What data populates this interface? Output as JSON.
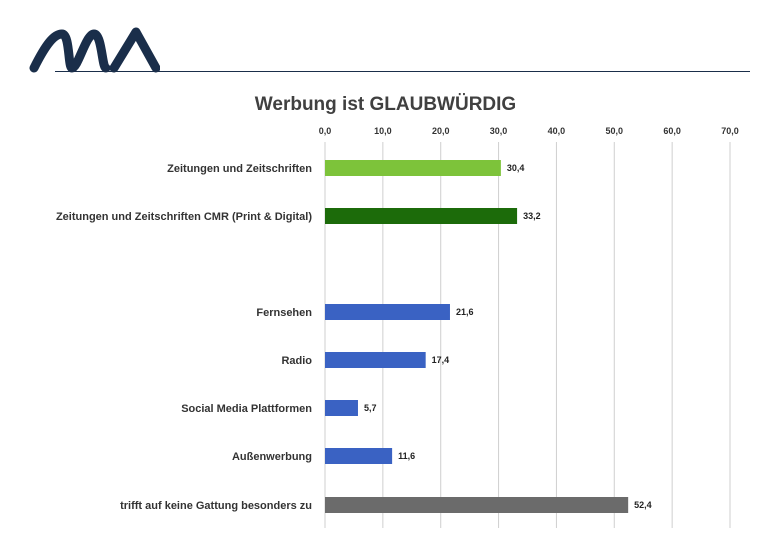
{
  "colors": {
    "logo": "#1a2e4a",
    "rule": "#1a2e4a",
    "gridline": "#cfcfcf",
    "title": "#404040"
  },
  "chart_data": {
    "type": "bar",
    "orientation": "horizontal",
    "title": "Werbung ist GLAUBWÜRDIG",
    "xlim": [
      0,
      70
    ],
    "xticks": [
      "0,0",
      "10,0",
      "20,0",
      "30,0",
      "40,0",
      "50,0",
      "60,0",
      "70,0"
    ],
    "xtick_values": [
      0,
      10,
      20,
      30,
      40,
      50,
      60,
      70
    ],
    "grid": true,
    "tick_position": "top",
    "categories": [
      "Zeitungen und Zeitschriften",
      "Zeitungen und Zeitschriften CMR (Print & Digital)",
      "Fernsehen",
      "Radio",
      "Social Media Plattformen",
      "Außenwerbung",
      "trifft auf keine Gattung besonders zu"
    ],
    "values": [
      30.4,
      33.2,
      21.6,
      17.4,
      5.7,
      11.6,
      52.4
    ],
    "value_labels": [
      "30,4",
      "33,2",
      "21,6",
      "17,4",
      "5,7",
      "11,6",
      "52,4"
    ],
    "bar_colors": [
      "#7dc33a",
      "#1c6b0a",
      "#3a62c3",
      "#3a62c3",
      "#3a62c3",
      "#3a62c3",
      "#6b6b6b"
    ],
    "gap_after_index": 1
  }
}
